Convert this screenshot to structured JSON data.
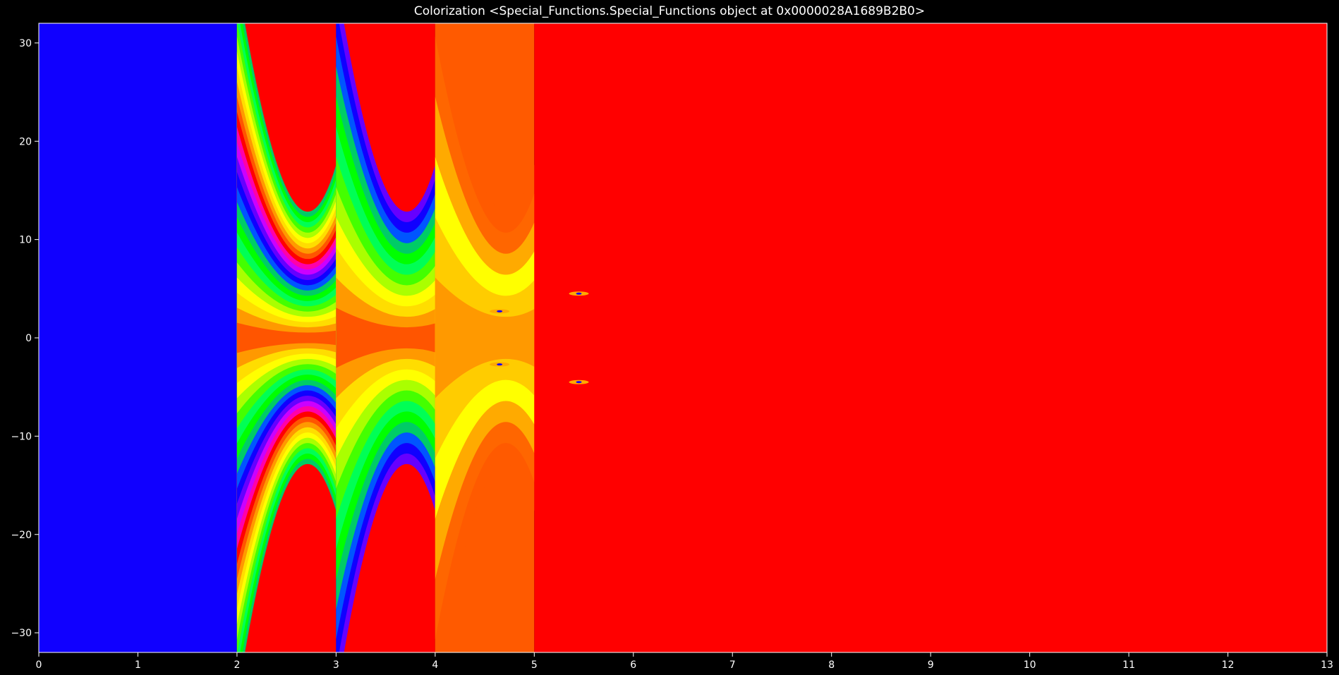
{
  "chart_data": {
    "type": "heatmap",
    "title": "Colorization <Special_Functions.Special_Functions object at 0x0000028A1689B2B0>",
    "xlabel": "",
    "ylabel": "",
    "xlim": [
      0,
      13
    ],
    "ylim": [
      -32,
      32
    ],
    "x_ticks": [
      "0",
      "1",
      "2",
      "3",
      "4",
      "5",
      "6",
      "7",
      "8",
      "9",
      "10",
      "11",
      "12",
      "13"
    ],
    "y_ticks": [
      "30",
      "20",
      "10",
      "0",
      "−10",
      "−20",
      "−30"
    ],
    "y_tick_values": [
      30,
      20,
      10,
      0,
      -10,
      -20,
      -30
    ],
    "grid": false,
    "background": "#000000",
    "regions": [
      {
        "x": [
          0,
          2
        ],
        "color": "#1000ff",
        "pattern": "solid"
      },
      {
        "x": [
          2,
          3
        ],
        "pattern": "rainbow-bands",
        "band_count": 24
      },
      {
        "x": [
          3,
          4
        ],
        "pattern": "rainbow-bands",
        "band_count": 12
      },
      {
        "x": [
          4,
          5
        ],
        "pattern": "orange-yellow-bands",
        "band_count": 6
      },
      {
        "x": [
          5,
          13
        ],
        "color": "#ff0000",
        "pattern": "solid"
      }
    ],
    "colors": {
      "blue": "#1000ff",
      "red": "#ff0000",
      "orange": "#ff9900",
      "yellow": "#ffff00",
      "green": "#44ff00"
    }
  }
}
